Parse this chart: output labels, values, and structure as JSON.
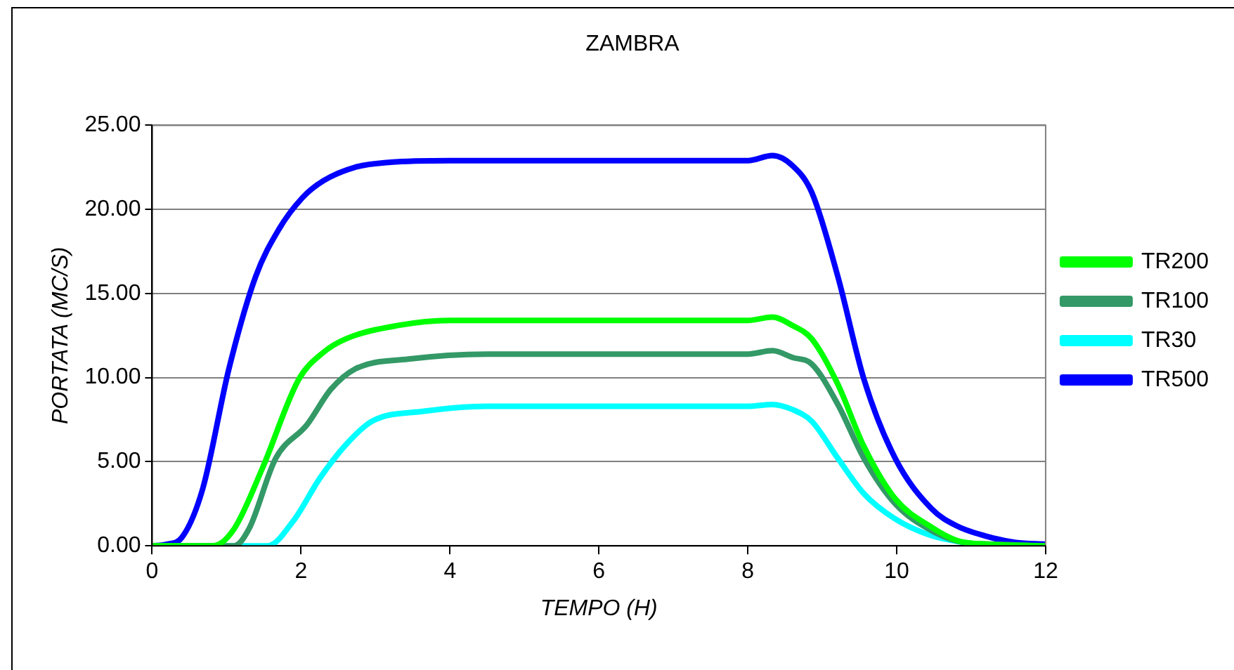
{
  "chart_data": {
    "type": "line",
    "title": "ZAMBRA",
    "xlabel": "TEMPO (H)",
    "ylabel": "PORTATA (MC/S)",
    "xlim": [
      0,
      12
    ],
    "xticks": [
      0,
      2,
      4,
      6,
      8,
      10,
      12
    ],
    "ylim": [
      0,
      25
    ],
    "yticks": [
      {
        "value": 0,
        "label": "0.00"
      },
      {
        "value": 5,
        "label": "5.00"
      },
      {
        "value": 10,
        "label": "10.00"
      },
      {
        "value": 15,
        "label": "15.00"
      },
      {
        "value": 20,
        "label": "20.00"
      },
      {
        "value": 25,
        "label": "25.00"
      }
    ],
    "grid": "y",
    "legend": "right",
    "marker": "none",
    "line_style": "solid",
    "series": [
      {
        "name": "TR200",
        "color": "#00ff00",
        "x": [
          0,
          0.5,
          0.82,
          1.1,
          1.48,
          1.97,
          2.3,
          2.6,
          3.3,
          4,
          6,
          8,
          8.33,
          8.6,
          8.86,
          9.21,
          9.56,
          9.98,
          10.47,
          10.82,
          11.2,
          12
        ],
        "values": [
          0,
          0,
          0,
          1,
          4.6,
          9.9,
          11.5,
          12.3,
          13.1,
          13.4,
          13.4,
          13.4,
          13.6,
          13.1,
          12.3,
          9.6,
          5.9,
          2.8,
          1.1,
          0.3,
          0.1,
          0
        ]
      },
      {
        "name": "TR100",
        "color": "#339966",
        "x": [
          0,
          0.5,
          1.1,
          1.3,
          1.66,
          2.08,
          2.4,
          2.72,
          3.44,
          4.5,
          6,
          8,
          8.33,
          8.6,
          8.86,
          9.21,
          9.56,
          9.98,
          10.47,
          10.9,
          11.3,
          12
        ],
        "values": [
          0,
          0,
          0,
          1,
          5.2,
          7.2,
          9.3,
          10.5,
          11.1,
          11.4,
          11.4,
          11.4,
          11.6,
          11.2,
          10.8,
          8.4,
          5.2,
          2.5,
          0.9,
          0.2,
          0.1,
          0
        ]
      },
      {
        "name": "TR30",
        "color": "#00ffff",
        "x": [
          0,
          1,
          1.55,
          1.9,
          2.25,
          2.6,
          2.95,
          3.65,
          4.5,
          6,
          8,
          8.33,
          8.6,
          8.86,
          9.21,
          9.56,
          9.98,
          10.47,
          10.9,
          11.3,
          12
        ],
        "values": [
          0,
          0,
          0,
          1.5,
          4,
          6,
          7.4,
          8,
          8.3,
          8.3,
          8.3,
          8.4,
          8.1,
          7.4,
          5.2,
          3.1,
          1.6,
          0.6,
          0.2,
          0,
          0
        ]
      },
      {
        "name": "TR500",
        "color": "#0000ff",
        "x": [
          0,
          0.2,
          0.4,
          0.68,
          1.03,
          1.39,
          1.7,
          2.02,
          2.3,
          2.72,
          3.2,
          4,
          6,
          8,
          8.33,
          8.6,
          8.86,
          9.21,
          9.56,
          9.98,
          10.47,
          10.8,
          11.18,
          11.6,
          12
        ],
        "values": [
          0,
          0.1,
          0.5,
          3.4,
          10.5,
          16,
          18.8,
          20.7,
          21.7,
          22.5,
          22.8,
          22.9,
          22.9,
          22.9,
          23.2,
          22.6,
          21,
          16,
          9.9,
          5.2,
          2.2,
          1.2,
          0.6,
          0.2,
          0.1
        ]
      }
    ]
  }
}
